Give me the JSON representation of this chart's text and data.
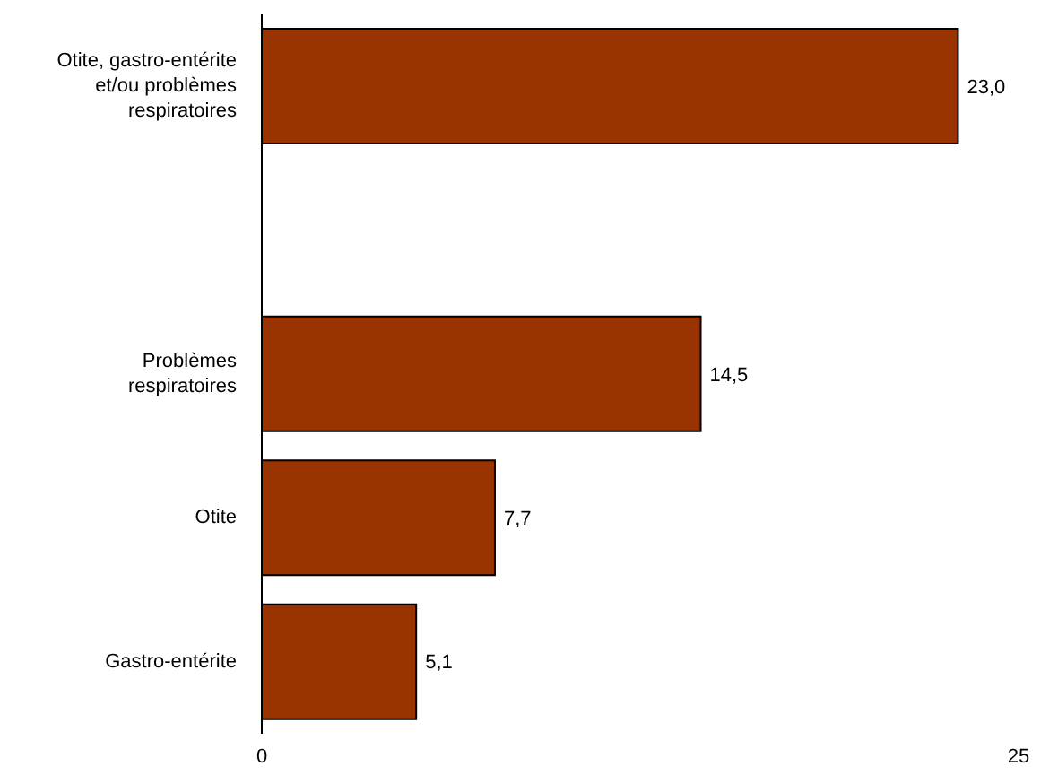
{
  "chart_data": {
    "type": "bar",
    "orientation": "horizontal",
    "categories": [
      "Otite, gastro-entérite et/ou problèmes respiratoires",
      null,
      "Problèmes respiratoires",
      "Otite",
      "Gastro-entérite"
    ],
    "values": [
      23.0,
      null,
      14.5,
      7.7,
      5.1
    ],
    "value_labels": [
      "23,0",
      null,
      "14,5",
      "7,7",
      "5,1"
    ],
    "color": "#993300",
    "xlim": [
      0,
      25
    ],
    "xticks": [
      0,
      25
    ],
    "grid": false
  }
}
